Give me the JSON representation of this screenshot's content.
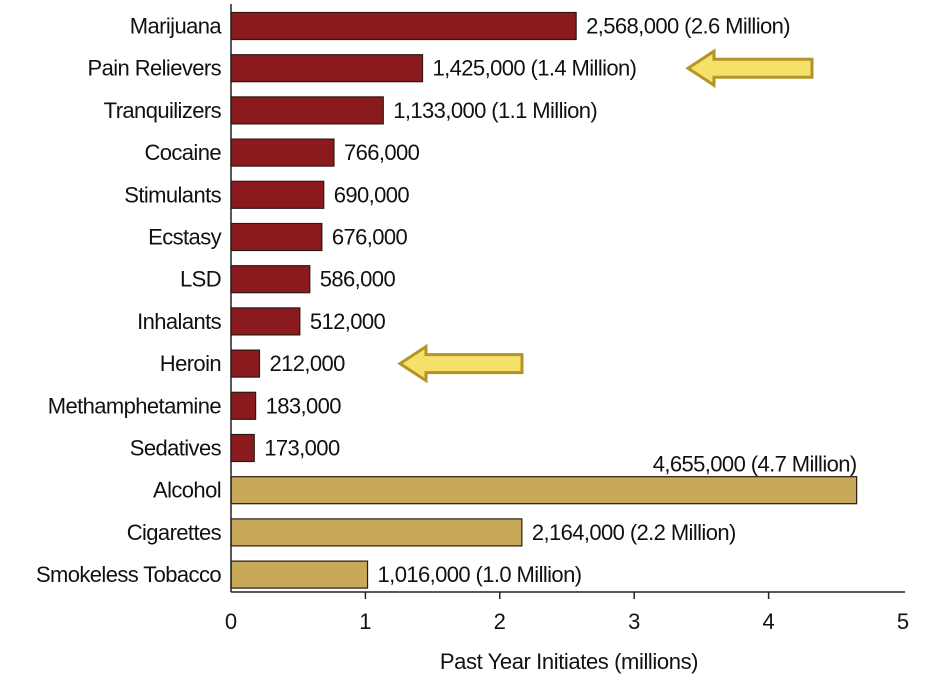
{
  "chart_data": {
    "type": "bar",
    "orientation": "horizontal",
    "xlabel": "Past Year Initiates (millions)",
    "xlim": [
      0,
      5
    ],
    "x_ticks": [
      "0",
      "1",
      "2",
      "3",
      "4",
      "5"
    ],
    "grid": false,
    "categories": [
      "Marijuana",
      "Pain Relievers",
      "Tranquilizers",
      "Cocaine",
      "Stimulants",
      "Ecstasy",
      "LSD",
      "Inhalants",
      "Heroin",
      "Methamphetamine",
      "Sedatives",
      "Alcohol",
      "Cigarettes",
      "Smokeless Tobacco"
    ],
    "values": [
      2.568,
      1.425,
      1.133,
      0.766,
      0.69,
      0.676,
      0.586,
      0.512,
      0.212,
      0.183,
      0.173,
      4.655,
      2.164,
      1.016
    ],
    "value_labels": [
      "2,568,000 (2.6 Million)",
      "1,425,000 (1.4 Million)",
      "1,133,000 (1.1 Million)",
      "766,000",
      "690,000",
      "676,000",
      "586,000",
      "512,000",
      "212,000",
      "183,000",
      "173,000",
      "4,655,000 (4.7 Million)",
      "2,164,000 (2.2 Million)",
      "1,016,000 (1.0 Million)"
    ],
    "bar_groups": [
      "illicit",
      "illicit",
      "illicit",
      "illicit",
      "illicit",
      "illicit",
      "illicit",
      "illicit",
      "illicit",
      "illicit",
      "illicit",
      "legal",
      "legal",
      "legal"
    ],
    "colors": {
      "illicit": "#8b1a1f",
      "legal": "#c8a95a",
      "bar_stroke": "#2b1a10",
      "arrow_fill": "#f7e06a",
      "arrow_stroke": "#b3942a",
      "axis": "#222222"
    },
    "highlight_arrows": [
      "Pain Relievers",
      "Heroin"
    ]
  }
}
